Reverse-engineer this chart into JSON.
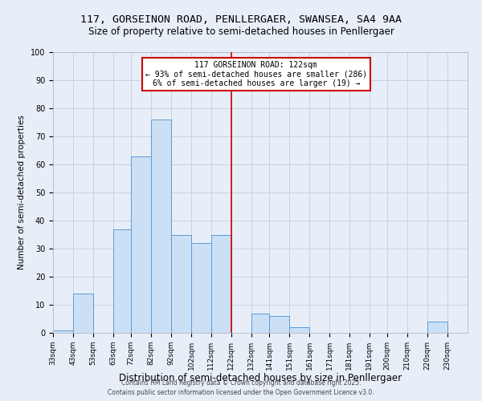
{
  "title": "117, GORSEINON ROAD, PENLLERGAER, SWANSEA, SA4 9AA",
  "subtitle": "Size of property relative to semi-detached houses in Penllergaer",
  "xlabel": "Distribution of semi-detached houses by size in Penllergaer",
  "ylabel": "Number of semi-detached properties",
  "bin_labels": [
    "33sqm",
    "43sqm",
    "53sqm",
    "63sqm",
    "72sqm",
    "82sqm",
    "92sqm",
    "102sqm",
    "112sqm",
    "122sqm",
    "132sqm",
    "141sqm",
    "151sqm",
    "161sqm",
    "171sqm",
    "181sqm",
    "191sqm",
    "200sqm",
    "210sqm",
    "220sqm",
    "230sqm"
  ],
  "bin_edges": [
    33,
    43,
    53,
    63,
    72,
    82,
    92,
    102,
    112,
    122,
    132,
    141,
    151,
    161,
    171,
    181,
    191,
    200,
    210,
    220,
    230
  ],
  "bar_heights": [
    1,
    14,
    0,
    37,
    63,
    76,
    35,
    32,
    35,
    0,
    7,
    6,
    2,
    0,
    0,
    0,
    0,
    0,
    0,
    4,
    0
  ],
  "bar_color": "#cce0f5",
  "bar_edge_color": "#5b9bd5",
  "vline_x": 122,
  "vline_color": "#cc0000",
  "annotation_title": "117 GORSEINON ROAD: 122sqm",
  "annotation_line1": "← 93% of semi-detached houses are smaller (286)",
  "annotation_line2": "6% of semi-detached houses are larger (19) →",
  "annotation_box_color": "#ffffff",
  "annotation_box_edge": "#cc0000",
  "ylim": [
    0,
    100
  ],
  "xlim_left": 33,
  "xlim_right": 240,
  "background_color": "#e8eef8",
  "grid_color": "#c0cfe0",
  "footer1": "Contains HM Land Registry data © Crown copyright and database right 2025.",
  "footer2": "Contains public sector information licensed under the Open Government Licence v3.0.",
  "title_fontsize": 9.5,
  "subtitle_fontsize": 8.5,
  "xlabel_fontsize": 8.5,
  "ylabel_fontsize": 7.5,
  "tick_fontsize": 6.5,
  "ann_fontsize": 7.0,
  "footer_fontsize": 5.5
}
